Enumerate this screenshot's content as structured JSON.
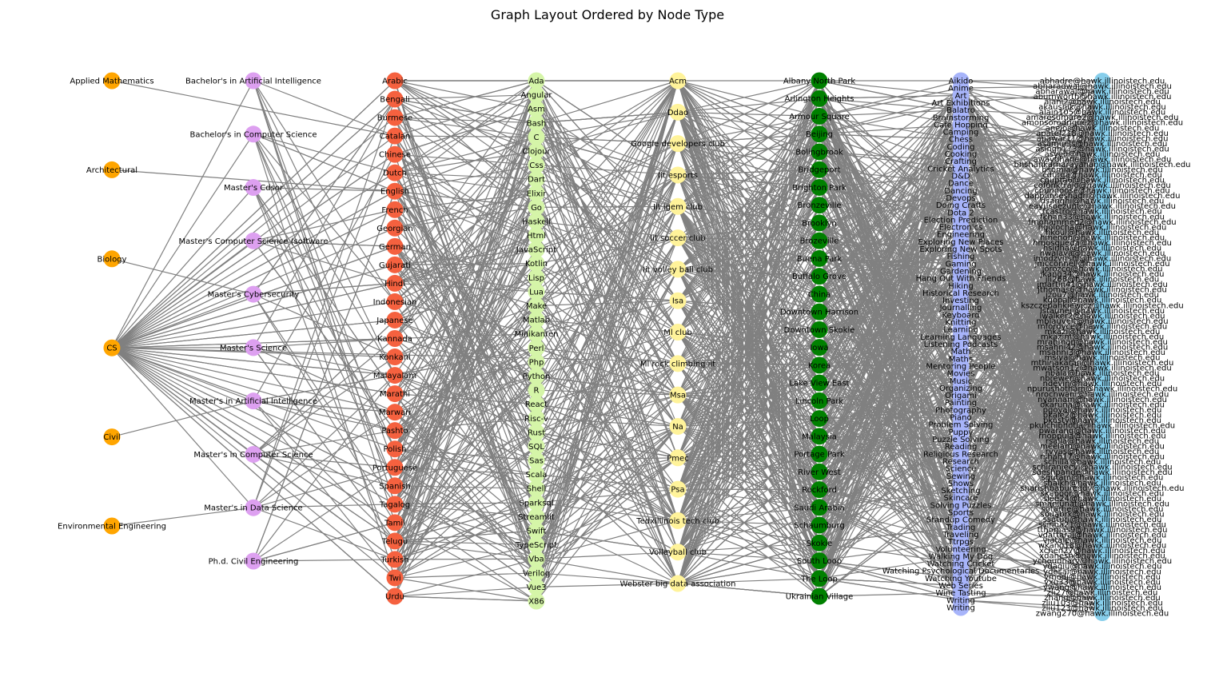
{
  "title": "Graph Layout Ordered by Node Type",
  "colors": {
    "edge": "#808080",
    "degree": "#ffa500",
    "major": "#dda0f0",
    "language": "#f5613f",
    "skill": "#d5f5a8",
    "club": "#fff39a",
    "location": "#008000",
    "hobby": "#a7b4fa",
    "email": "#87ceeb"
  },
  "columns": [
    {
      "key": "degree",
      "color_key": "degree",
      "nodes": [
        "Applied Mathematics",
        "Architectural",
        "Biology",
        "CS",
        "Civil",
        "Environmental Engineering"
      ]
    },
    {
      "key": "major",
      "color_key": "major",
      "nodes": [
        "Bachelor's in Artificial Intelligence",
        "Bachelor's in Computer Science",
        "Master's Cdsor",
        "Master's Computer Science (software",
        "Master's Cybersecurity",
        "Master's Science",
        "Master's in Artificial Intelligence",
        "Master's in Computer Science",
        "Master's in Data Science",
        "Ph.d. Civil Engineering"
      ]
    },
    {
      "key": "language",
      "color_key": "language",
      "nodes": [
        "Arabic",
        "Bengali",
        "Burmese",
        "Catalan",
        "Chinese",
        "Dutch",
        "English",
        "French",
        "Georgian",
        "German",
        "Gujarati",
        "Hindi",
        "Indonesian",
        "Japanese",
        "Kannada",
        "Konkani",
        "Malayalam",
        "Marathi",
        "Marwari",
        "Pashto",
        "Polish",
        "Portuguese",
        "Spanish",
        "Tagalog",
        "Tamil",
        "Telugu",
        "Turkish",
        "Twi",
        "Urdu"
      ]
    },
    {
      "key": "skill",
      "color_key": "skill",
      "nodes": [
        "Ada",
        "Angular",
        "Asm",
        "Bash",
        "C",
        "Clojour",
        "Css",
        "Dart",
        "Elixir",
        "Go",
        "Haskell",
        "Html",
        "JavaScript",
        "Kotlin",
        "Lisp",
        "Lua",
        "Make",
        "Matlab",
        "Minikanren",
        "Perl",
        "Php",
        "Python",
        "R",
        "React",
        "Risc-v",
        "Rust",
        "SQL",
        "Sas",
        "Scala",
        "Shell",
        "Sparksql",
        "Streamlit",
        "Swift",
        "TypeScript",
        "Vba",
        "Verilog",
        "Vue3",
        "X86"
      ]
    },
    {
      "key": "club",
      "color_key": "club",
      "nodes": [
        "Acm",
        "Ddao",
        "Google developers club",
        "Iit esports",
        "Iit igem club",
        "Iit soccer club",
        "Iit volley ball club",
        "Isa",
        "Ml club",
        "Ml rock climbing  iit",
        "Msa",
        "Na",
        "Pmec",
        "Psa",
        "Tedxillinois tech club",
        "Volleyball club",
        "Webster big data association"
      ]
    },
    {
      "key": "location",
      "color_key": "location",
      "nodes": [
        "Albany North Park",
        "Arlington Heights",
        "Armour Square",
        "Beijing",
        "Bolingbrook",
        "Bridgeport",
        "Brighton Park",
        "Bronzeville",
        "Brooklyn",
        "Brozeville",
        "Buena Park",
        "Buffalo Grove",
        "China",
        "Downtown Harrison",
        "Downtown Skokie",
        "Iowa",
        "Korea",
        "Lake View East",
        "Lincoln Park",
        "Loop",
        "Malaysia",
        "Portage Park",
        "River West",
        "Rockford",
        "Saudi Arabia",
        "Schaumburg",
        "Skokie",
        "South Loop",
        "The Loop",
        "Ukrainian Village"
      ]
    },
    {
      "key": "hobby",
      "color_key": "hobby",
      "nodes": [
        "Aikido",
        "Anime",
        "Art",
        "Art Exhibitions",
        "Balatro",
        "Brainstorming",
        "Cafe Hopping",
        "Camping",
        "Chess",
        "Coding",
        "Cooking",
        "Crafting",
        "Cricket Analytics",
        "D&D",
        "Dance",
        "Dancing",
        "Devops",
        "Doing Crafts",
        "Dota 2",
        "Election Prediction",
        "Electronics",
        "Engineering",
        "Exploring New Places",
        "Exploring New Spots",
        "Fishing",
        "Gaming",
        "Gardening",
        "Hang Out With Friends",
        "Hiking",
        "Historical Research",
        "Investing",
        "Journalling",
        "Keyboard",
        "Knitting",
        "Learning",
        "Learning Languages",
        "Listening Podcasts",
        "Math",
        "Maths",
        "Mentoring People",
        "Movies",
        "Music",
        "Organizing",
        "Origami",
        "Painting",
        "Photography",
        "Piano",
        "Problem Solving",
        "Puppy",
        "Puzzle Solving",
        "Reading",
        "Religious Research",
        "Research",
        "Science",
        "Sewing",
        "Shows",
        "Sketching",
        "Skincare",
        "Solving Puzzles",
        "Sports",
        "Standup Comedy",
        "Trading",
        "Traveling",
        "Ttrpgs",
        "Volunteering",
        "Walking  My Dog",
        "Watching Cricket",
        "Watching Psychological Documentaries",
        "Watching Youtube",
        "Web Series",
        "Wine Tasting",
        "Writing",
        "Writing"
      ]
    },
    {
      "key": "email",
      "color_key": "email",
      "nodes": [
        "abhadre@hawk.illinoistech.edu",
        "abharadwaj@hawk.illinoistech.edu",
        "abharawaj@hawk.illinoistech.edu",
        "aburnworth@hawk.illinoistech.edu",
        "ajani2@hawk.illinoistech.edu",
        "akaushik@hawk.illinoistech.edu",
        "alain105@hawk.illinoistech.edu",
        "amaresumare2@hawk.illinoistech.edu",
        "amonsorodriguez@hawk.illinoistech.edu",
        "anejo@hawk.illinoistech.edu",
        "apatel218@hawk.illinoistech.edu",
        "apawar11@hawk.illinoistech.edu",
        "asamuels@hawk.illinoistech.edu",
        "asingh173@hawk.illinoistech.edu",
        "asyed@hawk.illinoistech.edu",
        "awaydhane@hawk.illinoistech.edu",
        "bhshankarnarayanan@hawk.illinoistech.edu",
        "bsomia@hawk.illinoistech.edu",
        "cdurga@hawk.illinoistech.edu",
        "cgupta6@hawk.illinoistech.edu",
        "cofonktrajo@hawk.illinoistech.edu",
        "cpunnoose@hawk.illinoistech.edu",
        "dappanseshadri@hawk.illinoistech.edu",
        "dsanghi@hawk.illinoistech.edu",
        "eayusoezunie@hawk.illinoistech.edu",
        "fcastro@hawk.illinoistech.edu",
        "fkhan33@hawk.illinoistech.edu",
        "fmohammed2@hawk.illinoistech.edu",
        "hgolocha@hawk.illinoistech.edu",
        "hkoul@hawk.illinoistech.edu",
        "hmenon@hawk.illinoistech.edu",
        "hmosqueda@hawk.illinoistech.edu",
        "hsinha@hawk.illinoistech.edu",
        "hwalaya@hawk.illinoistech.edu",
        "imodzvirshi@hawk.illinoistech.edu",
        "jmcconnell@hawk.illinoistech.edu",
        "jorozco@hawk.illinoistech.edu",
        "jkang34@hawk.illinoistech.edu",
        "jli268@hawk.illinoistech.edu",
        "jmartin41@hawk.illinoistech.edu",
        "jthomas6@hawk.illinoistech.edu",
        "jzou7@hawk.illinoistech.edu",
        "kgopal@hawk.illinoistech.edu",
        "kszczepankiewicz@hawk.illinoistech.edu",
        "lstauner@hawk.illinoistech.edu",
        "lwalker2@hawk.illinoistech.edu",
        "mblauvelt@hawk.illinoistech.edu",
        "mfordyce@hawk.illinoistech.edu",
        "mkazi@hawk.illinoistech.edu",
        "mkazim@hawk.illinoistech.edu",
        "mrahman@hawk.illinoistech.edu",
        "msahni42@hawk.illinoistech.edu",
        "msahni3@hawk.illinoistech.edu",
        "msiva@hawk.illinoistech.edu",
        "mthinakaran@hawk.illinoistech.edu",
        "mwatson12@hawk.illinoistech.edu",
        "nbala@hawk.illinoistech.edu",
        "nbrewer@hawk.illinoistech.edu",
        "ndevin@hawk.illinoistech.edu",
        "npurushotham@hawk.illinoistech.edu",
        "nrochwani@hawk.illinoistech.edu",
        "nyannam@hawk.illinoistech.edu",
        "okaruna@hawk.illinoistech.edu",
        "pgoyal@hawk.illinoistech.edu",
        "pkale2@hawk.illinoistech.edu",
        "pkosty@hawk.illinoistech.edu",
        "pkulchibhotla@hawk.illinoistech.edu",
        "pwarang@hawk.illinoistech.edu",
        "rnoppula@hawk.illinoistech.edu",
        "rsalla@hawk.illinoistech.edu",
        "meelam@hawk.illinoistech.edu",
        "rvyas@hawk.illinoistech.edu",
        "rshah17@hawk.illinoistech.edu",
        "schilla@hawk.illinoistech.edu",
        "schiranjeevi@hawk.illinoistech.edu",
        "sdeshpande@hawk.illinoistech.edu",
        "sgutam@hawk.illinoistech.edu",
        "shaikh@hawk.illinoistech.edu",
        "sharishbabureddy@hawk.illinoistech.edu",
        "skapoor@hawk.illinoistech.edu",
        "slee24@hawk.illinoistech.edu",
        "smanjunat@hawk.illinoistech.edu",
        "sotarhe@hawk.illinoistech.edu",
        "souabrk@hawk.illinoistech.edu",
        "ssaturi@hawk.illinoistech.edu",
        "ssinha21@hawk.illinoistech.edu",
        "tthomas9@hawk.illinoistech.edu",
        "vdattaraj@hawk.illinoistech.edu",
        "vjatale@hawk.illinoistech.edu",
        "wkang18@hawk.illinoistech.edu",
        "xchen27@hawk.illinoistech.edu",
        "xdanesh@hawk.illinoistech.edu",
        "ychoudhary@hawk.illinoistech.edu",
        "ydagiu@hawk.illinoistech.edu",
        "ydesai@hawk.illinoistech.edu",
        "ymodi@hawk.illinoistech.edu",
        "yxu33@hawk.illinoistech.edu",
        "ywang@hawk.illinoistech.edu",
        "zli27@hawk.illinoistech.edu",
        "zhang@hawk.illinoistech.edu",
        "zliu103@hawk.illinoistech.edu",
        "zliu123@hawk.illinoistech.edu",
        "zwang270@hawk.illinoistech.edu"
      ]
    }
  ],
  "edges": [
    [
      "Applied Mathematics",
      "Catalan"
    ],
    [
      "Architectural",
      "English"
    ],
    [
      "Biology",
      "Master's Cybersecurity"
    ],
    [
      "Civil",
      "Master's in Artificial Intelligence"
    ],
    [
      "Environmental Engineering",
      "Master's in Data Science"
    ],
    [
      "CS",
      "Bachelor's in Artificial Intelligence"
    ],
    [
      "CS",
      "Bachelor's in Computer Science"
    ],
    [
      "CS",
      "Master's Cdsor"
    ],
    [
      "CS",
      "Master's Computer Science (software"
    ],
    [
      "CS",
      "Master's Cybersecurity"
    ],
    [
      "CS",
      "Master's Science"
    ],
    [
      "CS",
      "Master's in Artificial Intelligence"
    ],
    [
      "CS",
      "Master's in Computer Science"
    ],
    [
      "CS",
      "Master's in Data Science"
    ],
    [
      "CS",
      "Arabic"
    ],
    [
      "CS",
      "Bengali"
    ],
    [
      "CS",
      "Chinese"
    ],
    [
      "CS",
      "English"
    ],
    [
      "CS",
      "Hindi"
    ],
    [
      "CS",
      "Gujarati"
    ],
    [
      "CS",
      "Marathi"
    ],
    [
      "CS",
      "Tamil"
    ],
    [
      "CS",
      "Telugu"
    ],
    [
      "CS",
      "Urdu"
    ],
    [
      "CS",
      "Kannada"
    ],
    [
      "CS",
      "Malayalam"
    ],
    [
      "CS",
      "Spanish"
    ],
    [
      "CS",
      "French"
    ],
    [
      "CS",
      "German"
    ],
    [
      "CS",
      "Japanese"
    ],
    [
      "CS",
      "Korea"
    ],
    [
      "Ph.d. Civil Engineering",
      "Tamil"
    ],
    [
      "Bachelor's in Artificial Intelligence",
      "Catalan"
    ],
    [
      "Bachelor's in Computer Science",
      "Dutch"
    ],
    [
      "Bachelor's in Computer Science",
      "English"
    ],
    [
      "Master's Computer Science (software",
      "German"
    ],
    [
      "Master's Cybersecurity",
      "Hindi"
    ],
    [
      "Master's in Artificial Intelligence",
      "Malayalam"
    ],
    [
      "Master's in Artificial Intelligence",
      "Marwari"
    ],
    [
      "Master's in Computer Science",
      "Portuguese"
    ],
    [
      "Master's in Computer Science",
      "Spanish"
    ],
    [
      "Master's in Data Science",
      "Tagalog"
    ],
    [
      "Arabic",
      "Ada"
    ],
    [
      "Arabic",
      "Asm"
    ],
    [
      "Arabic",
      "C"
    ],
    [
      "Arabic",
      "Css"
    ],
    [
      "Arabic",
      "Dart"
    ],
    [
      "Arabic",
      "Acm"
    ],
    [
      "Bengali",
      "Bash"
    ],
    [
      "Bengali",
      "Elixir"
    ],
    [
      "Burmese",
      "Bash"
    ],
    [
      "Catalan",
      "C"
    ],
    [
      "Chinese",
      "Css"
    ],
    [
      "Dutch",
      "Dart"
    ],
    [
      "English",
      "Ada"
    ],
    [
      "English",
      "C"
    ],
    [
      "English",
      "Css"
    ],
    [
      "English",
      "Go"
    ],
    [
      "English",
      "Html"
    ],
    [
      "English",
      "JavaScript"
    ],
    [
      "English",
      "Python"
    ],
    [
      "English",
      "SQL"
    ],
    [
      "English",
      "React"
    ],
    [
      "Hindi",
      "C"
    ],
    [
      "Hindi",
      "Html"
    ],
    [
      "Hindi",
      "Python"
    ],
    [
      "Hindi",
      "SQL"
    ],
    [
      "Hindi",
      "JavaScript"
    ],
    [
      "Telugu",
      "C"
    ],
    [
      "Telugu",
      "Python"
    ],
    [
      "Telugu",
      "SQL"
    ],
    [
      "Telugu",
      "Swift"
    ],
    [
      "Telugu",
      "Shell"
    ],
    [
      "Telugu",
      "Ada"
    ],
    [
      "Tamil",
      "Python"
    ],
    [
      "Tamil",
      "Java"
    ],
    [
      "Urdu",
      "X86"
    ],
    [
      "Urdu",
      "Vba"
    ],
    [
      "Twi",
      "Verilog"
    ],
    [
      "Turkish",
      "Streamlit"
    ],
    [
      "Ada",
      "Acm"
    ],
    [
      "C",
      "Google developers club"
    ],
    [
      "C",
      "Iit esports"
    ],
    [
      "Python",
      "Ml club"
    ],
    [
      "SQL",
      "Tedxillinois tech club"
    ],
    [
      "Swift",
      "Volleyball club"
    ],
    [
      "Vue3",
      "Webster big data association"
    ],
    [
      "Acm",
      "Albany North Park"
    ],
    [
      "Ddao",
      "Armour Square"
    ],
    [
      "Google developers club",
      "Beijing"
    ],
    [
      "Isa",
      "Downtown Harrison"
    ],
    [
      "Na",
      "Loop"
    ],
    [
      "Webster big data association",
      "Ukrainian Village"
    ],
    [
      "Tedxillinois tech club",
      "Schaumburg"
    ],
    [
      "Volleyball club",
      "South Loop"
    ],
    [
      "Albany North Park",
      "Aikido"
    ],
    [
      "Arlington Heights",
      "Art"
    ],
    [
      "Beijing",
      "Chess"
    ],
    [
      "China",
      "Gaming"
    ],
    [
      "Loop",
      "Reading"
    ],
    [
      "South Loop",
      "Watching Youtube"
    ],
    [
      "The Loop",
      "Writing"
    ],
    [
      "Ukrainian Village",
      "Wine Tasting"
    ],
    [
      "Bridgeport",
      "Dance"
    ],
    [
      "Korea",
      "Music"
    ],
    [
      "Aikido",
      "abhadre@hawk.illinoistech.edu"
    ],
    [
      "Anime",
      "abharadwaj@hawk.illinoistech.edu"
    ],
    [
      "Art",
      "ajani2@hawk.illinoistech.edu"
    ],
    [
      "Chess",
      "apatel218@hawk.illinoistech.edu"
    ],
    [
      "Coding",
      "asamuels@hawk.illinoistech.edu"
    ],
    [
      "Dance",
      "cgupta6@hawk.illinoistech.edu"
    ],
    [
      "Gaming",
      "hkoul@hawk.illinoistech.edu"
    ],
    [
      "Music",
      "mwatson12@hawk.illinoistech.edu"
    ],
    [
      "Reading",
      "pwarang@hawk.illinoistech.edu"
    ],
    [
      "Writing",
      "zwang270@hawk.illinoistech.edu"
    ],
    [
      "Writing",
      "zliu123@hawk.illinoistech.edu"
    ],
    [
      "Wine Tasting",
      "zhang@hawk.illinoistech.edu"
    ]
  ]
}
